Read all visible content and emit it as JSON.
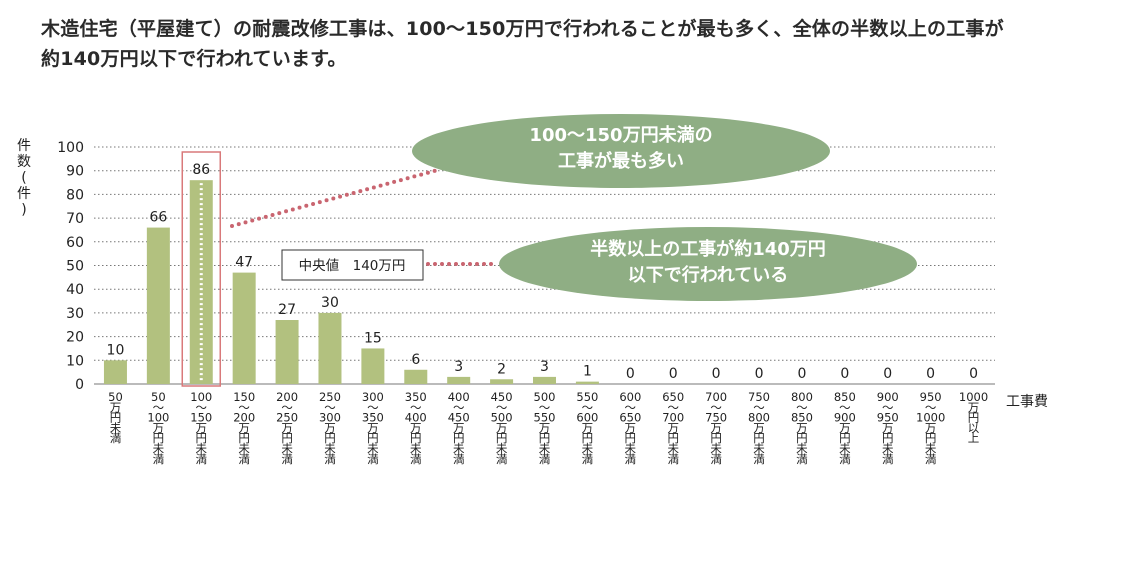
{
  "headline": {
    "line1": "木造住宅（平屋建て）の耐震改修工事は、100〜150万円で行われることが最も多く、全体の半数以上の工事が",
    "line2": "約140万円以下で行われています。"
  },
  "callouts": {
    "top": {
      "line1": "100〜150万円未満の",
      "line2": "工事が最も多い"
    },
    "median_box": "中央値　140万円",
    "right": {
      "line1": "半数以上の工事が約140万円",
      "line2": "以下で行われている"
    }
  },
  "colors": {
    "bar": "#b2c17f",
    "highlight_box": "#d9797a",
    "dotted_connector": "#c96570",
    "ellipse": "#8fae84",
    "grid": "#777777"
  },
  "chart_data": {
    "type": "bar",
    "ylabel": "件数(件)",
    "xlabel": "工事費",
    "ylim": [
      0,
      100
    ],
    "yticks": [
      0,
      10,
      20,
      30,
      40,
      50,
      60,
      70,
      80,
      90,
      100
    ],
    "grid": true,
    "highlighted_category_index": 2,
    "median": 140,
    "categories": [
      [
        "50",
        "万",
        "円",
        "未",
        "満"
      ],
      [
        "50",
        "〜",
        "100",
        "万",
        "円",
        "未",
        "満"
      ],
      [
        "100",
        "〜",
        "150",
        "万",
        "円",
        "未",
        "満"
      ],
      [
        "150",
        "〜",
        "200",
        "万",
        "円",
        "未",
        "満"
      ],
      [
        "200",
        "〜",
        "250",
        "万",
        "円",
        "未",
        "満"
      ],
      [
        "250",
        "〜",
        "300",
        "万",
        "円",
        "未",
        "満"
      ],
      [
        "300",
        "〜",
        "350",
        "万",
        "円",
        "未",
        "満"
      ],
      [
        "350",
        "〜",
        "400",
        "万",
        "円",
        "未",
        "満"
      ],
      [
        "400",
        "〜",
        "450",
        "万",
        "円",
        "未",
        "満"
      ],
      [
        "450",
        "〜",
        "500",
        "万",
        "円",
        "未",
        "満"
      ],
      [
        "500",
        "〜",
        "550",
        "万",
        "円",
        "未",
        "満"
      ],
      [
        "550",
        "〜",
        "600",
        "万",
        "円",
        "未",
        "満"
      ],
      [
        "600",
        "〜",
        "650",
        "万",
        "円",
        "未",
        "満"
      ],
      [
        "650",
        "〜",
        "700",
        "万",
        "円",
        "未",
        "満"
      ],
      [
        "700",
        "〜",
        "750",
        "万",
        "円",
        "未",
        "満"
      ],
      [
        "750",
        "〜",
        "800",
        "万",
        "円",
        "未",
        "満"
      ],
      [
        "800",
        "〜",
        "850",
        "万",
        "円",
        "未",
        "満"
      ],
      [
        "850",
        "〜",
        "900",
        "万",
        "円",
        "未",
        "満"
      ],
      [
        "900",
        "〜",
        "950",
        "万",
        "円",
        "未",
        "満"
      ],
      [
        "950",
        "〜",
        "1000",
        "万",
        "円",
        "未",
        "満"
      ],
      [
        "1000",
        "万",
        "円",
        "以",
        "上"
      ]
    ],
    "values": [
      10,
      66,
      86,
      47,
      27,
      30,
      15,
      6,
      3,
      2,
      3,
      1,
      0,
      0,
      0,
      0,
      0,
      0,
      0,
      0,
      0
    ]
  }
}
